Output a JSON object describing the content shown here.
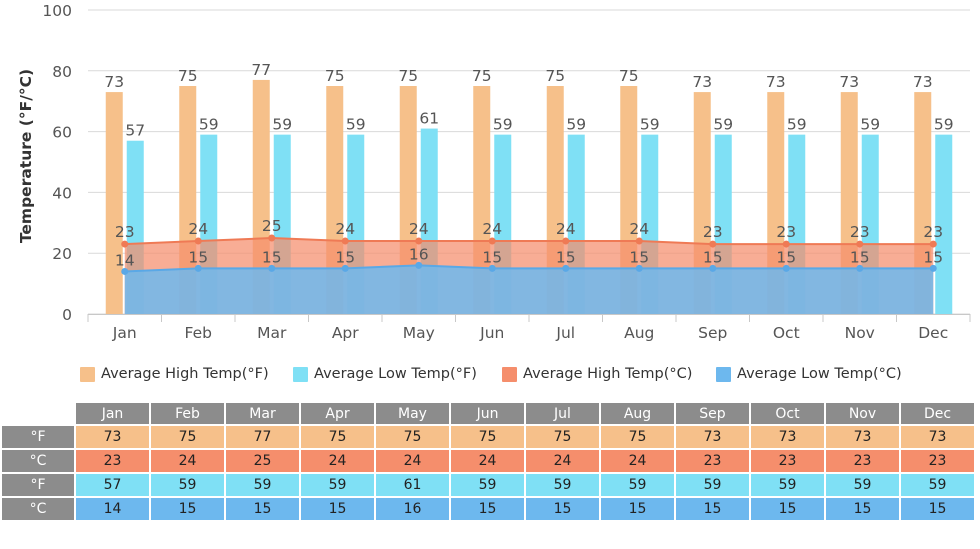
{
  "chart_data": {
    "type": "bar",
    "ylabel": "Temperature (°F/°C)",
    "ylim": [
      0,
      100
    ],
    "yticks": [
      0,
      20,
      40,
      60,
      80,
      100
    ],
    "grid": true,
    "legend_position": "bottom",
    "categories": [
      "Jan",
      "Feb",
      "Mar",
      "Apr",
      "May",
      "Jun",
      "Jul",
      "Aug",
      "Sep",
      "Oct",
      "Nov",
      "Dec"
    ],
    "series": [
      {
        "name": "Average High Temp(°F)",
        "type": "bar",
        "color": "#f6c08a",
        "values": [
          73,
          75,
          77,
          75,
          75,
          75,
          75,
          75,
          73,
          73,
          73,
          73
        ]
      },
      {
        "name": "Average Low Temp(°F)",
        "type": "bar",
        "color": "#7fe0f5",
        "values": [
          57,
          59,
          59,
          59,
          61,
          59,
          59,
          59,
          59,
          59,
          59,
          59
        ]
      },
      {
        "name": "Average High Temp(°C)",
        "type": "area",
        "color": "#f58e6c",
        "values": [
          23,
          24,
          25,
          24,
          24,
          24,
          24,
          24,
          23,
          23,
          23,
          23
        ]
      },
      {
        "name": "Average Low Temp(°C)",
        "type": "area",
        "color": "#6db8ee",
        "values": [
          14,
          15,
          15,
          15,
          16,
          15,
          15,
          15,
          15,
          15,
          15,
          15
        ]
      }
    ]
  },
  "table": {
    "columns": [
      "Jan",
      "Feb",
      "Mar",
      "Apr",
      "May",
      "Jun",
      "Jul",
      "Aug",
      "Sep",
      "Oct",
      "Nov",
      "Dec"
    ],
    "rows": [
      {
        "label": "°F",
        "values": [
          "73",
          "75",
          "77",
          "75",
          "75",
          "75",
          "75",
          "75",
          "73",
          "73",
          "73",
          "73"
        ]
      },
      {
        "label": "°C",
        "values": [
          "23",
          "24",
          "25",
          "24",
          "24",
          "24",
          "24",
          "24",
          "23",
          "23",
          "23",
          "23"
        ]
      },
      {
        "label": "°F",
        "values": [
          "57",
          "59",
          "59",
          "59",
          "61",
          "59",
          "59",
          "59",
          "59",
          "59",
          "59",
          "59"
        ]
      },
      {
        "label": "°C",
        "values": [
          "14",
          "15",
          "15",
          "15",
          "16",
          "15",
          "15",
          "15",
          "15",
          "15",
          "15",
          "15"
        ]
      }
    ]
  }
}
